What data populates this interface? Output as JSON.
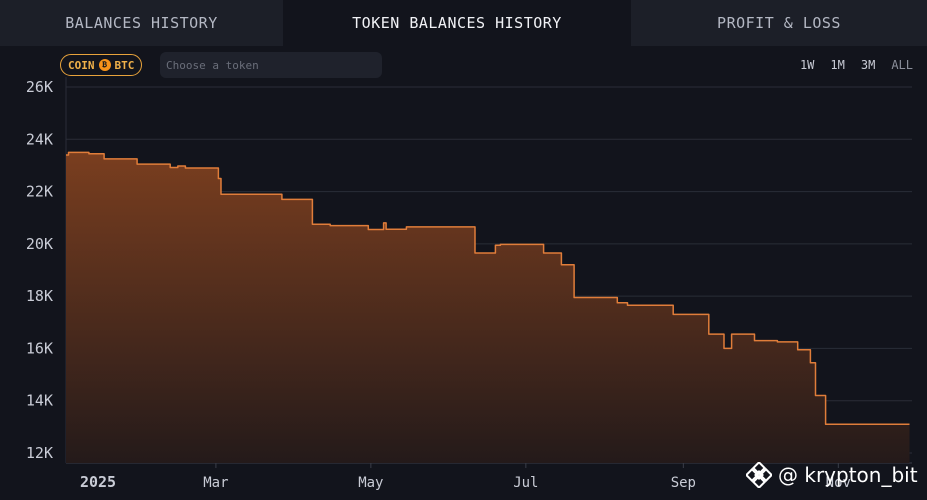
{
  "tabs": [
    {
      "label": "BALANCES HISTORY",
      "active": false
    },
    {
      "label": "TOKEN BALANCES HISTORY",
      "active": true
    },
    {
      "label": "PROFIT & LOSS",
      "active": false
    }
  ],
  "toolbar": {
    "coin_label": "COIN",
    "token_symbol": "BTC",
    "token_placeholder": "Choose a token",
    "ranges": [
      "1W",
      "1M",
      "3M",
      "ALL"
    ]
  },
  "colors": {
    "accent": "#e8a33b",
    "line": "#e07d3a",
    "fill_top": "#7a3e1f",
    "fill_bottom": "#241a1a"
  },
  "watermark": {
    "handle": "@ krypton_bit",
    "logo": "binance-logo"
  },
  "chart_data": {
    "type": "area",
    "title": "",
    "xlabel": "",
    "ylabel": "",
    "ylim": [
      12000,
      26000
    ],
    "yticks": [
      12000,
      14000,
      16000,
      18000,
      20000,
      22000,
      24000,
      26000
    ],
    "ytick_labels": [
      "12K",
      "14K",
      "16K",
      "18K",
      "20K",
      "22K",
      "24K",
      "26K"
    ],
    "xlim": [
      "2025-01-01",
      "2025-11-30"
    ],
    "xticks": [
      {
        "date": "2025-01-01",
        "label": "2025",
        "bold": true
      },
      {
        "date": "2025-03-01",
        "label": "Mar",
        "bold": false
      },
      {
        "date": "2025-05-01",
        "label": "May",
        "bold": false
      },
      {
        "date": "2025-07-01",
        "label": "Jul",
        "bold": false
      },
      {
        "date": "2025-09-01",
        "label": "Sep",
        "bold": false
      },
      {
        "date": "2025-11-01",
        "label": "Nov",
        "bold": false
      }
    ],
    "grid": true,
    "step": true,
    "series": [
      {
        "points": [
          [
            "2025-01-01",
            23400
          ],
          [
            "2025-01-02",
            23500
          ],
          [
            "2025-01-10",
            23450
          ],
          [
            "2025-01-16",
            23250
          ],
          [
            "2025-01-29",
            23050
          ],
          [
            "2025-02-11",
            22920
          ],
          [
            "2025-02-14",
            22980
          ],
          [
            "2025-02-17",
            22900
          ],
          [
            "2025-03-02",
            22500
          ],
          [
            "2025-03-03",
            21900
          ],
          [
            "2025-03-27",
            21700
          ],
          [
            "2025-04-08",
            20750
          ],
          [
            "2025-04-15",
            20700
          ],
          [
            "2025-04-30",
            20550
          ],
          [
            "2025-05-06",
            20800
          ],
          [
            "2025-05-07",
            20560
          ],
          [
            "2025-05-15",
            20650
          ],
          [
            "2025-06-11",
            19650
          ],
          [
            "2025-06-19",
            19950
          ],
          [
            "2025-06-21",
            19980
          ],
          [
            "2025-07-08",
            19650
          ],
          [
            "2025-07-15",
            19200
          ],
          [
            "2025-07-20",
            17950
          ],
          [
            "2025-08-06",
            17750
          ],
          [
            "2025-08-10",
            17650
          ],
          [
            "2025-08-28",
            17300
          ],
          [
            "2025-09-11",
            16550
          ],
          [
            "2025-09-17",
            16000
          ],
          [
            "2025-09-20",
            16550
          ],
          [
            "2025-09-29",
            16300
          ],
          [
            "2025-10-08",
            16250
          ],
          [
            "2025-10-16",
            15950
          ],
          [
            "2025-10-21",
            15450
          ],
          [
            "2025-10-23",
            14200
          ],
          [
            "2025-10-27",
            13100
          ],
          [
            "2025-11-29",
            13100
          ]
        ]
      }
    ]
  }
}
